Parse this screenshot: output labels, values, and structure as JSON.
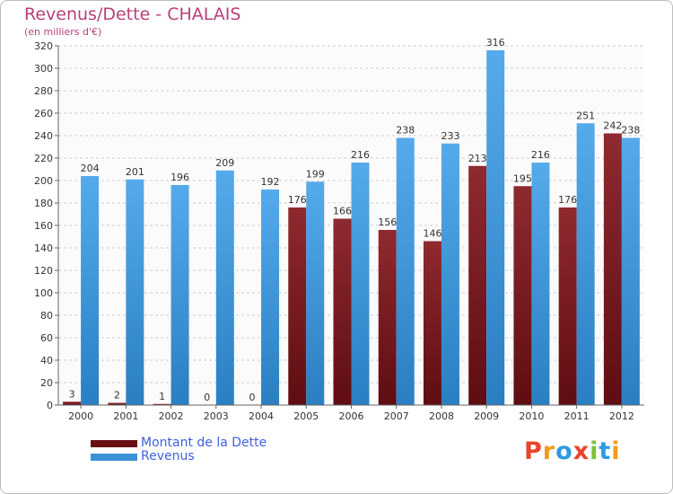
{
  "chart_data": {
    "type": "bar",
    "title": "Revenus/Dette - CHALAIS",
    "subtitle": "(en milliers d'€)",
    "categories": [
      "2000",
      "2001",
      "2002",
      "2003",
      "2004",
      "2005",
      "2006",
      "2007",
      "2008",
      "2009",
      "2010",
      "2011",
      "2012"
    ],
    "series": [
      {
        "name": "Montant de la Dette",
        "color": "#7a1a1f",
        "values": [
          3,
          2,
          1,
          0,
          0,
          176,
          166,
          156,
          146,
          213,
          195,
          176,
          242
        ]
      },
      {
        "name": "Revenus",
        "color": "#3a93d6",
        "values": [
          204,
          201,
          196,
          209,
          192,
          199,
          216,
          238,
          233,
          316,
          216,
          251,
          238
        ]
      }
    ],
    "ylim": [
      0,
      320
    ],
    "yticks": [
      0,
      20,
      40,
      60,
      80,
      100,
      120,
      140,
      160,
      180,
      200,
      220,
      240,
      260,
      280,
      300,
      320
    ],
    "grid": true,
    "legend_position": "bottom-left"
  },
  "logo": {
    "text": "Proxiti",
    "colors": [
      "#e8442a",
      "#f39a1c",
      "#2f9be0",
      "#e8442a",
      "#7cc03a",
      "#2f9be0",
      "#f39a1c"
    ]
  }
}
